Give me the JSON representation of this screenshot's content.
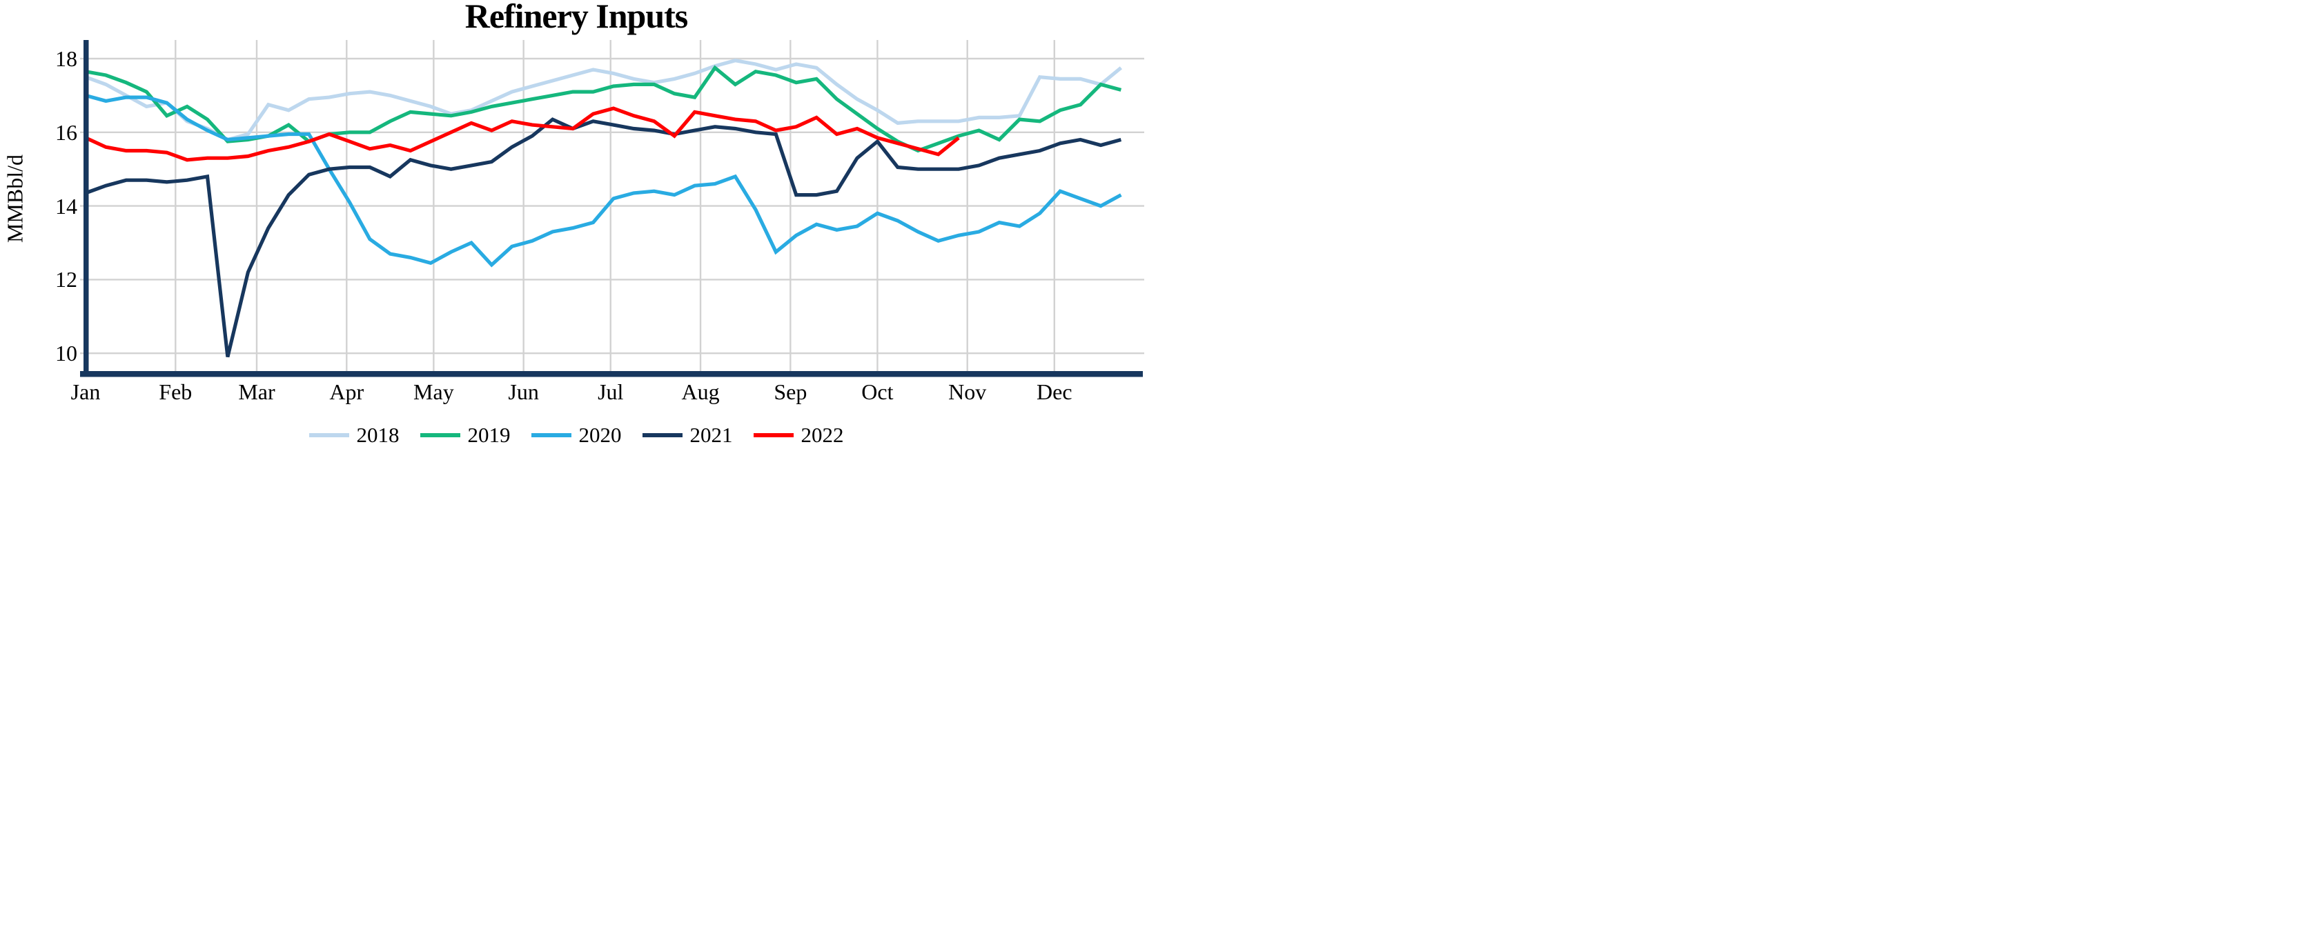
{
  "title": "Refinery Inputs",
  "y_axis": {
    "label": "MMBbl/d",
    "tick_labels": [
      "18",
      "16",
      "14",
      "12",
      "10"
    ],
    "tick_values": [
      18,
      16,
      14,
      12,
      10
    ]
  },
  "x_axis": {
    "tick_labels": [
      "Jan",
      "Feb",
      "Mar",
      "Apr",
      "May",
      "Jun",
      "Jul",
      "Aug",
      "Sep",
      "Oct",
      "Nov",
      "Dec"
    ],
    "month_start_days": [
      0,
      31,
      59,
      90,
      120,
      151,
      181,
      212,
      243,
      273,
      304,
      334
    ]
  },
  "colors": {
    "axis": "#17375E",
    "gridline": "#D2D2D2",
    "background": "#FFFFFF"
  },
  "chart_data": {
    "type": "line",
    "title": "Refinery Inputs",
    "xlabel": "",
    "ylabel": "MMBbl/d",
    "x_unit": "weekly observations across one calendar year (Jan-Dec)",
    "ylim": [
      9.4,
      18.5
    ],
    "grid": true,
    "legend_position": "bottom-center",
    "series": [
      {
        "name": "2018",
        "color": "#BDD7EE",
        "values": [
          17.5,
          17.3,
          17.0,
          16.7,
          16.8,
          16.3,
          16.1,
          15.8,
          15.95,
          16.75,
          16.6,
          16.9,
          16.95,
          17.05,
          17.1,
          17.0,
          16.85,
          16.7,
          16.5,
          16.6,
          16.85,
          17.1,
          17.25,
          17.4,
          17.55,
          17.7,
          17.6,
          17.45,
          17.35,
          17.45,
          17.6,
          17.8,
          17.95,
          17.85,
          17.7,
          17.85,
          17.75,
          17.3,
          16.9,
          16.6,
          16.25,
          16.3,
          16.3,
          16.3,
          16.4,
          16.4,
          16.45,
          17.5,
          17.45,
          17.45,
          17.3,
          17.75
        ]
      },
      {
        "name": "2019",
        "color": "#15B77D",
        "values": [
          17.65,
          17.55,
          17.35,
          17.1,
          16.45,
          16.7,
          16.35,
          15.75,
          15.8,
          15.9,
          16.2,
          15.75,
          15.95,
          16.0,
          16.0,
          16.3,
          16.55,
          16.5,
          16.45,
          16.55,
          16.7,
          16.8,
          16.9,
          17.0,
          17.1,
          17.1,
          17.25,
          17.3,
          17.3,
          17.05,
          16.95,
          17.75,
          17.3,
          17.65,
          17.55,
          17.35,
          17.45,
          16.9,
          16.5,
          16.1,
          15.75,
          15.5,
          15.7,
          15.9,
          16.05,
          15.8,
          16.35,
          16.3,
          16.6,
          16.75,
          17.3,
          17.15
        ]
      },
      {
        "name": "2020",
        "color": "#29ABE2",
        "values": [
          17.0,
          16.85,
          16.95,
          16.95,
          16.8,
          16.35,
          16.05,
          15.8,
          15.85,
          15.9,
          15.95,
          15.95,
          15.0,
          14.1,
          13.1,
          12.7,
          12.6,
          12.45,
          12.75,
          13.0,
          12.4,
          12.9,
          13.05,
          13.3,
          13.4,
          13.55,
          14.2,
          14.35,
          14.4,
          14.3,
          14.55,
          14.6,
          14.8,
          13.9,
          12.75,
          13.2,
          13.5,
          13.35,
          13.45,
          13.8,
          13.6,
          13.3,
          13.05,
          13.2,
          13.3,
          13.55,
          13.45,
          13.8,
          14.4,
          14.2,
          14.0,
          14.3
        ]
      },
      {
        "name": "2021",
        "color": "#17375E",
        "values": [
          14.35,
          14.55,
          14.7,
          14.7,
          14.65,
          14.7,
          14.8,
          9.9,
          12.2,
          13.4,
          14.3,
          14.85,
          15.0,
          15.05,
          15.05,
          14.8,
          15.25,
          15.1,
          15.0,
          15.1,
          15.2,
          15.6,
          15.9,
          16.35,
          16.1,
          16.3,
          16.2,
          16.1,
          16.05,
          15.95,
          16.05,
          16.15,
          16.1,
          16.0,
          15.95,
          14.3,
          14.3,
          14.4,
          15.3,
          15.75,
          15.05,
          15.0,
          15.0,
          15.0,
          15.1,
          15.3,
          15.4,
          15.5,
          15.7,
          15.8,
          15.65,
          15.8
        ]
      },
      {
        "name": "2022",
        "color": "#FF0000",
        "note": "partial year - series ends in early November",
        "values": [
          15.85,
          15.6,
          15.5,
          15.5,
          15.45,
          15.25,
          15.3,
          15.3,
          15.35,
          15.5,
          15.6,
          15.75,
          15.95,
          15.75,
          15.55,
          15.65,
          15.5,
          15.75,
          16.0,
          16.25,
          16.05,
          16.3,
          16.2,
          16.15,
          16.1,
          16.5,
          16.65,
          16.45,
          16.3,
          15.9,
          16.55,
          16.45,
          16.35,
          16.3,
          16.05,
          16.15,
          16.4,
          15.95,
          16.1,
          15.85,
          15.7,
          15.55,
          15.4,
          15.85
        ]
      }
    ]
  }
}
